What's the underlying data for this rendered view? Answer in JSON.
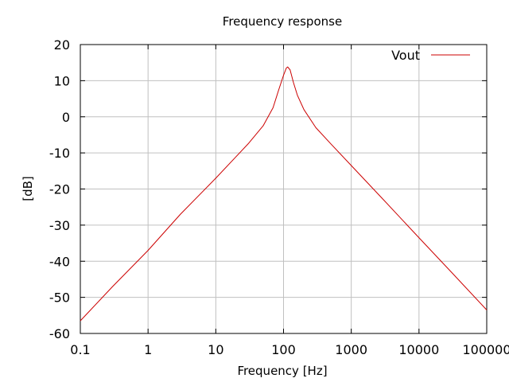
{
  "chart_data": {
    "type": "line",
    "title": "Frequency response",
    "xlabel": "Frequency [Hz]",
    "ylabel": "[dB]",
    "x_scale": "log",
    "xlim": [
      0.1,
      100000
    ],
    "ylim": [
      -60,
      20
    ],
    "grid": true,
    "legend_position": "top-right",
    "x_ticks": [
      0.1,
      1,
      10,
      100,
      1000,
      10000,
      100000
    ],
    "x_tick_labels": [
      "0.1",
      "1",
      "10",
      "100",
      "1000",
      "10000",
      "100000"
    ],
    "y_ticks": [
      -60,
      -50,
      -40,
      -30,
      -20,
      -10,
      0,
      10,
      20
    ],
    "y_tick_labels": [
      "-60",
      "-50",
      "-40",
      "-30",
      "-20",
      "-10",
      "0",
      "10",
      "20"
    ],
    "series": [
      {
        "name": "Vout",
        "color": "#cc0000",
        "x": [
          0.1,
          0.3,
          1,
          3,
          10,
          20,
          30,
          50,
          70,
          85,
          100,
          110,
          115,
          125,
          140,
          160,
          200,
          300,
          500,
          1000,
          3000,
          10000,
          30000,
          100000
        ],
        "y": [
          -56.5,
          -47,
          -37,
          -27,
          -17,
          -11,
          -7.5,
          -2.5,
          2.5,
          7.5,
          11.5,
          13.5,
          13.8,
          13,
          9.5,
          6,
          2,
          -3,
          -7.5,
          -13.5,
          -23,
          -33.5,
          -43,
          -53.5
        ]
      }
    ]
  }
}
